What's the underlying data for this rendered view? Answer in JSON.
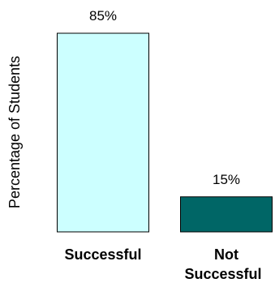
{
  "chart_data": {
    "type": "bar",
    "title": "",
    "xlabel": "",
    "ylabel": "Percentage of Students",
    "categories": [
      "Successful",
      "Not Successful"
    ],
    "values": [
      85,
      15
    ],
    "data_labels": [
      "85%",
      "15%"
    ],
    "ylim": [
      0,
      85
    ],
    "bar_colors": [
      "#ccffff",
      "#006666"
    ],
    "bar_edge_color": "#000000",
    "grid": false,
    "legend": "none"
  }
}
